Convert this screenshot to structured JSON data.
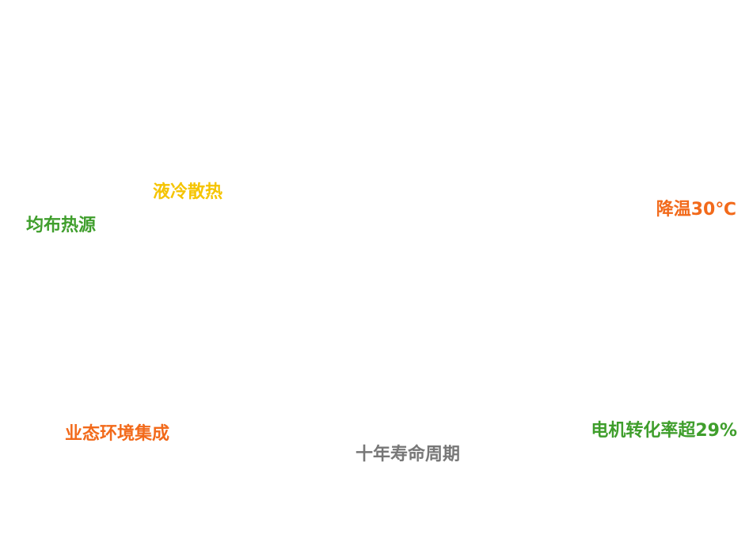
{
  "labels": [
    "液冷散热",
    "均布热源",
    "降温30℃",
    "业态环境集成",
    "电机转化率超29%",
    "十年寿命周期"
  ]
}
